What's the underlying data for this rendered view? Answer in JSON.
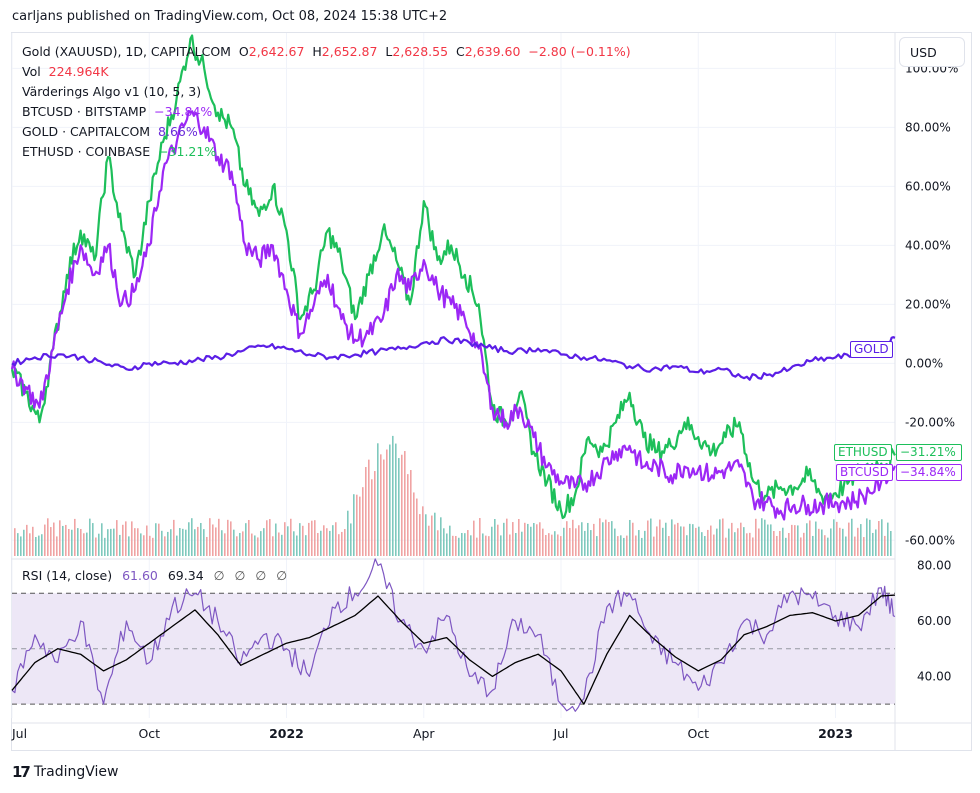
{
  "header": {
    "publish_line": "carljans published on TradingView.com, Oct 08, 2024 15:38 UTC+2"
  },
  "legend": {
    "main_symbol": "Gold (XAUUSD), 1D, CAPITALCOM",
    "o_label": "O",
    "o_value": "2,642.67",
    "h_label": "H",
    "h_value": "2,652.87",
    "l_label": "L",
    "l_value": "2,628.55",
    "c_label": "C",
    "c_value": "2,639.60",
    "change": "−2.80 (−0.11%)",
    "vol_label": "Vol",
    "vol_value": "224.964K",
    "indicator": "Värderings Algo v1 (10, 5, 3)",
    "comparisons": [
      {
        "name": "BTCUSD · BITSTAMP",
        "value": "−34.84%",
        "color": "#9c27f5"
      },
      {
        "name": "GOLD · CAPITALCOM",
        "value": "8.66%",
        "color": "#6a2bd9"
      },
      {
        "name": "ETHUSD · COINBASE",
        "value": "−31.21%",
        "color": "#1dbf5a"
      }
    ]
  },
  "currency_button": "USD",
  "rsi_legend": {
    "label": "RSI (14, close)",
    "value": "61.60",
    "ma_value": "69.34",
    "placeholders": [
      "∅",
      "∅",
      "∅",
      "∅"
    ]
  },
  "price_tags": {
    "gold": "GOLD",
    "ethusd": "ETHUSD",
    "ethusd_value": "−31.21%",
    "btcusd": "BTCUSD",
    "btcusd_value": "−34.84%"
  },
  "footer": {
    "brand": "TradingView",
    "logo_glyph": "17"
  },
  "colors": {
    "btc": "#9c27f5",
    "gold": "#5b1ee6",
    "eth": "#1dbf5a",
    "vol_up": "#7fc9bd",
    "vol_down": "#f0a3a3",
    "rsi": "#7e57c2",
    "rsi_ma": "#000000",
    "rsi_band": "#ede7f6"
  },
  "chart_data": [
    {
      "type": "line",
      "title": "Gold (XAUUSD), 1D, CAPITALCOM — percent comparison",
      "ylabel": "%",
      "ylim": [
        -66,
        112
      ],
      "y_ticks": [
        "100.00%",
        "80.00%",
        "60.00%",
        "40.00%",
        "20.00%",
        "0.00%",
        "-20.00%",
        "-60.00%"
      ],
      "y_tick_values": [
        100,
        80,
        60,
        40,
        20,
        0,
        -20,
        -60
      ],
      "x_ticks": [
        "Jul",
        "Oct",
        "2022",
        "Apr",
        "Jul",
        "Oct",
        "2023"
      ],
      "x_tick_positions_month_index": [
        0,
        3,
        6,
        9,
        12,
        15,
        18
      ],
      "x_range_months": [
        0,
        19.3
      ],
      "series": [
        {
          "name": "ETHUSD",
          "x": [
            0,
            0.3,
            0.6,
            0.9,
            1.2,
            1.5,
            1.8,
            2.1,
            2.4,
            2.7,
            3,
            3.3,
            3.6,
            3.9,
            4.2,
            4.5,
            4.8,
            5.1,
            5.4,
            5.7,
            6,
            6.3,
            6.6,
            6.9,
            7.2,
            7.5,
            7.8,
            8.1,
            8.4,
            8.7,
            9,
            9.3,
            9.6,
            9.9,
            10.2,
            10.5,
            10.8,
            11.1,
            11.4,
            11.7,
            12,
            12.3,
            12.6,
            12.9,
            13.2,
            13.5,
            13.8,
            14.1,
            14.4,
            14.7,
            15,
            15.3,
            15.6,
            15.9,
            16.2,
            16.5,
            16.8,
            17.1,
            17.4,
            17.7,
            18,
            18.3,
            18.6,
            19,
            19.3
          ],
          "values": [
            -2,
            -10,
            -20,
            5,
            30,
            45,
            35,
            70,
            45,
            30,
            55,
            75,
            90,
            110,
            100,
            85,
            80,
            60,
            50,
            60,
            45,
            15,
            25,
            45,
            35,
            15,
            30,
            45,
            35,
            20,
            55,
            35,
            40,
            30,
            20,
            -15,
            -20,
            -10,
            -30,
            -40,
            -50,
            -45,
            -25,
            -30,
            -20,
            -10,
            -25,
            -30,
            -28,
            -20,
            -25,
            -30,
            -25,
            -20,
            -40,
            -45,
            -42,
            -42,
            -38,
            -45,
            -44,
            -40,
            -35,
            -34,
            -31.21
          ]
        },
        {
          "name": "BTCUSD",
          "x": [
            0,
            0.3,
            0.6,
            0.9,
            1.2,
            1.5,
            1.8,
            2.1,
            2.4,
            2.7,
            3,
            3.3,
            3.6,
            3.9,
            4.2,
            4.5,
            4.8,
            5.1,
            5.4,
            5.7,
            6,
            6.3,
            6.6,
            6.9,
            7.2,
            7.5,
            7.8,
            8.1,
            8.4,
            8.7,
            9,
            9.3,
            9.6,
            9.9,
            10.2,
            10.5,
            10.8,
            11.1,
            11.4,
            11.7,
            12,
            12.3,
            12.6,
            12.9,
            13.2,
            13.5,
            13.8,
            14.1,
            14.4,
            14.7,
            15,
            15.3,
            15.6,
            15.9,
            16.2,
            16.5,
            16.8,
            17.1,
            17.4,
            17.7,
            18,
            18.3,
            18.6,
            19,
            19.3
          ],
          "values": [
            -2,
            -8,
            -15,
            5,
            25,
            40,
            30,
            40,
            20,
            25,
            40,
            65,
            75,
            85,
            80,
            70,
            65,
            40,
            35,
            40,
            25,
            10,
            20,
            30,
            15,
            8,
            10,
            15,
            30,
            25,
            35,
            25,
            20,
            15,
            5,
            -15,
            -20,
            -15,
            -25,
            -35,
            -40,
            -42,
            -40,
            -35,
            -30,
            -28,
            -35,
            -35,
            -38,
            -35,
            -36,
            -38,
            -36,
            -35,
            -46,
            -47,
            -50,
            -48,
            -48,
            -48,
            -47,
            -47,
            -45,
            -40,
            -34.84
          ]
        },
        {
          "name": "GOLD",
          "x": [
            0,
            0.5,
            1,
            1.5,
            2,
            2.5,
            3,
            3.5,
            4,
            4.5,
            5,
            5.5,
            6,
            6.5,
            7,
            7.5,
            8,
            8.5,
            9,
            9.5,
            10,
            10.5,
            11,
            11.5,
            12,
            12.5,
            13,
            13.5,
            14,
            14.5,
            15,
            15.5,
            16,
            16.5,
            17,
            17.5,
            18,
            18.5,
            19,
            19.3
          ],
          "values": [
            0,
            2,
            3,
            2,
            0,
            -2,
            0,
            0,
            1,
            2,
            4,
            6,
            5,
            3,
            2,
            3,
            4,
            5,
            7,
            8,
            7,
            5,
            4,
            5,
            3,
            2,
            1,
            -1,
            -2,
            -1,
            -3,
            -2,
            -5,
            -4,
            -2,
            1,
            2,
            3,
            5,
            8.66
          ]
        }
      ]
    },
    {
      "type": "bar",
      "title": "Volume",
      "note": "Volume histogram bars, up (teal) / down (pink)",
      "relative_scale": "0-100",
      "peak_month_index": 8.2
    },
    {
      "type": "line",
      "title": "RSI (14, close)",
      "ylim": [
        25,
        82
      ],
      "y_ticks": [
        "80.00",
        "60.00",
        "40.00"
      ],
      "y_tick_values": [
        80,
        60,
        40
      ],
      "bands": [
        30,
        50,
        70
      ],
      "series": [
        {
          "name": "RSI",
          "x": [
            0,
            0.5,
            1,
            1.5,
            2,
            2.5,
            3,
            3.5,
            4,
            4.5,
            5,
            5.5,
            6,
            6.5,
            7,
            7.5,
            8,
            8.5,
            9,
            9.5,
            10,
            10.5,
            11,
            11.5,
            12,
            12.5,
            13,
            13.5,
            14,
            14.5,
            15,
            15.5,
            16,
            16.5,
            17,
            17.5,
            18,
            18.5,
            19,
            19.3
          ],
          "values": [
            35,
            55,
            45,
            60,
            30,
            60,
            45,
            65,
            70,
            60,
            45,
            55,
            50,
            40,
            65,
            70,
            80,
            60,
            50,
            62,
            40,
            35,
            60,
            55,
            30,
            32,
            65,
            70,
            52,
            45,
            35,
            45,
            60,
            55,
            70,
            68,
            62,
            58,
            72,
            61.6
          ]
        },
        {
          "name": "RSI MA",
          "x": [
            0,
            0.5,
            1,
            1.5,
            2,
            2.5,
            3,
            3.5,
            4,
            4.5,
            5,
            5.5,
            6,
            6.5,
            7,
            7.5,
            8,
            8.5,
            9,
            9.5,
            10,
            10.5,
            11,
            11.5,
            12,
            12.5,
            13,
            13.5,
            14,
            14.5,
            15,
            15.5,
            16,
            16.5,
            17,
            17.5,
            18,
            18.5,
            19,
            19.3
          ],
          "values": [
            35,
            45,
            50,
            48,
            42,
            46,
            52,
            58,
            64,
            55,
            44,
            48,
            52,
            54,
            58,
            62,
            69,
            60,
            52,
            54,
            46,
            40,
            45,
            48,
            42,
            30,
            48,
            62,
            54,
            47,
            42,
            46,
            55,
            58,
            62,
            63,
            60,
            62,
            69,
            69.34
          ]
        }
      ]
    }
  ]
}
